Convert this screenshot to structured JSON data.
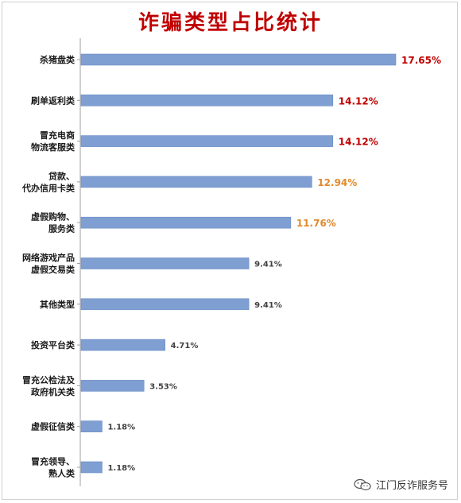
{
  "chart_data": {
    "type": "bar",
    "orientation": "horizontal",
    "title": "诈骗类型占比统计",
    "categories": [
      [
        "杀猪盘类"
      ],
      [
        "刷单返利类"
      ],
      [
        "冒充电商",
        "物流客服类"
      ],
      [
        "贷款、",
        "代办信用卡类"
      ],
      [
        "虚假购物、",
        "服务类"
      ],
      [
        "网络游戏产品",
        "虚假交易类"
      ],
      [
        "其他类型"
      ],
      [
        "投资平台类"
      ],
      [
        "冒充公检法及",
        "政府机关类"
      ],
      [
        "虚假征信类"
      ],
      [
        "冒充领导、",
        "熟人类"
      ]
    ],
    "values": [
      17.65,
      14.12,
      14.12,
      12.94,
      11.76,
      9.41,
      9.41,
      4.71,
      3.53,
      1.18,
      1.18
    ],
    "value_labels": [
      "17.65%",
      "14.12%",
      "14.12%",
      "12.94%",
      "11.76%",
      "9.41%",
      "9.41%",
      "4.71%",
      "3.53%",
      "1.18%",
      "1.18%"
    ],
    "label_colors": [
      "#c00000",
      "#c00000",
      "#c00000",
      "#e08a2c",
      "#e08a2c",
      "#404040",
      "#404040",
      "#404040",
      "#404040",
      "#404040",
      "#404040"
    ],
    "bar_color": "#7f9fd2",
    "xlim": [
      0,
      17.65
    ],
    "grid": false,
    "legend": "none"
  },
  "watermark": {
    "text": "江门反诈服务号",
    "icon": "wechat-icon"
  }
}
